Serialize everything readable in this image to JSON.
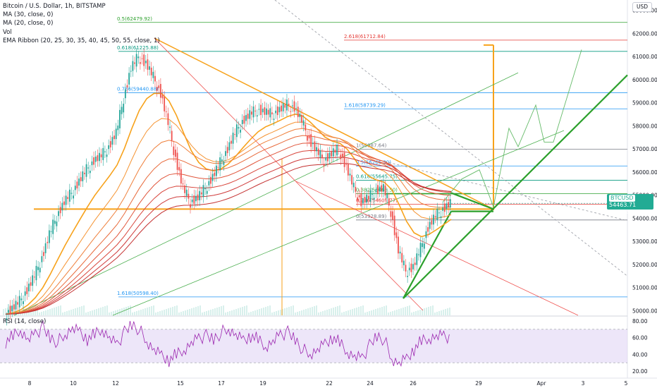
{
  "header": {
    "title": "Bitcoin / U.S. Dollar, 1h, BITSTAMP",
    "indicators": [
      "MA (30, close, 0)",
      "MA (20, close, 0)",
      "Vol",
      "EMA Ribbon (20, 25, 30, 35, 40, 45, 50, 55, close, 1)"
    ],
    "currency": "USD"
  },
  "last_price": {
    "symbol": "BTCUSD",
    "value": "54463.71",
    "countdown": "23:38"
  },
  "rsi": {
    "label": "RSI (14, close)",
    "ticks": [
      "80.00",
      "60.00",
      "40.00",
      "20.00"
    ]
  },
  "colors": {
    "up": "#26a69a",
    "down": "#ef5350",
    "orange": "#f7a21b",
    "green": "#2ca02c",
    "blue_fib": "#2196f3",
    "teal_fib": "#089981",
    "rsi_line": "#9c27b0",
    "rsi_band": "#e1d5f5"
  },
  "chart_data": {
    "type": "candlestick",
    "xaxis_labels": [
      "8",
      "10",
      "12",
      "15",
      "17",
      "19",
      "22",
      "24",
      "26",
      "29",
      "Apr",
      "3",
      "5"
    ],
    "yaxis_labels": [
      "63000.00",
      "62000.00",
      "61000.00",
      "60000.00",
      "59000.00",
      "58000.00",
      "57000.00",
      "56000.00",
      "55000.00",
      "54000.00",
      "53000.00",
      "52000.00",
      "51000.00",
      "50000.00"
    ],
    "ylim": [
      49800,
      63450
    ],
    "fib_labels": [
      "0.5(62479.92)",
      "0.618(61225.88)",
      "0.786(59440.88)",
      "1.618(50598.40)",
      "1.618(58739.29)",
      "2.618(61712.84)",
      "1(56987.64)",
      "0.5(56265.30)",
      "0.618(55645.75)",
      "0.382(55065.50)",
      "0.236(54605.77)",
      "0(53928.89)"
    ],
    "fib_levels": [
      62479.92,
      61225.88,
      59440.88,
      50598.4,
      58739.29,
      61712.84,
      56987.64,
      56265.3,
      55645.75,
      55065.5,
      54605.77,
      53928.89
    ],
    "prices": [
      49850,
      50100,
      50400,
      50900,
      51500,
      52300,
      53300,
      54100,
      54700,
      55100,
      55600,
      56100,
      56500,
      56700,
      57100,
      57700,
      59200,
      60500,
      61000,
      60700,
      60100,
      59400,
      58100,
      56600,
      55300,
      54700,
      54900,
      55300,
      55800,
      56400,
      57000,
      57700,
      58200,
      58500,
      58700,
      58600,
      58500,
      58700,
      58900,
      58800,
      58200,
      57400,
      56900,
      56500,
      56800,
      57000,
      56200,
      55300,
      54700,
      54900,
      55200,
      55300,
      54300,
      52600,
      51700,
      51900,
      52700,
      53600,
      54100,
      54400,
      54650
    ],
    "rsi_values": [
      55,
      62,
      70,
      58,
      65,
      72,
      60,
      55,
      63,
      70,
      66,
      58,
      64,
      71,
      60,
      52,
      66,
      76,
      70,
      55,
      44,
      38,
      33,
      40,
      46,
      54,
      60,
      62,
      58,
      66,
      70,
      62,
      56,
      62,
      58,
      50,
      56,
      64,
      66,
      58,
      46,
      40,
      44,
      52,
      60,
      54,
      44,
      38,
      36,
      50,
      62,
      58,
      34,
      28,
      34,
      46,
      56,
      60,
      62,
      63,
      60
    ]
  }
}
